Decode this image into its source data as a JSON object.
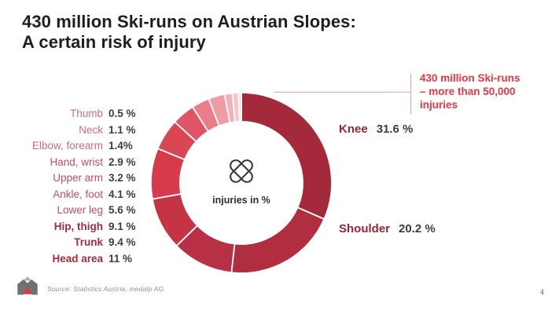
{
  "header": {
    "title": "430 million Ski-runs on Austrian Slopes:\nA certain risk of injury"
  },
  "annotation": {
    "text": "430 million Ski-runs\n– more than 50,000\ninjuries",
    "color": "#EE3440",
    "connector_color": "#F3A2AA"
  },
  "chart_data": {
    "type": "pie",
    "subtype": "donut",
    "title": "430 million Ski-runs on Austrian Slopes: A certain risk of injury",
    "center_label": "injuries in %",
    "center_icon": "crossed-bandaids-icon",
    "unit": "%",
    "start_angle_deg": 0,
    "direction": "clockwise",
    "legend_position": "left (small slices), right callouts (Knee, Shoulder)",
    "segments": [
      {
        "label": "Knee",
        "value": 31.6,
        "display": "31.6 %",
        "color": "#A4293A",
        "label_color": "#9C2433",
        "bold": true
      },
      {
        "label": "Shoulder",
        "value": 20.2,
        "display": "20.2 %",
        "color": "#B02E40",
        "label_color": "#9C2433",
        "bold": true
      },
      {
        "label": "Head area",
        "value": 11,
        "display": "11 %",
        "color": "#B73043",
        "label_color": "#A32B3C",
        "bold": true
      },
      {
        "label": "Trunk",
        "value": 9.4,
        "display": "9.4 %",
        "color": "#C53445",
        "label_color": "#A32B3C",
        "bold": true
      },
      {
        "label": "Hip, thigh",
        "value": 9.1,
        "display": "9.1 %",
        "color": "#D63A4B",
        "label_color": "#A32B3C",
        "bold": true
      },
      {
        "label": "Lower leg",
        "value": 5.6,
        "display": "5.6 %",
        "color": "#D94654",
        "label_color": "#C24F5B",
        "bold": false
      },
      {
        "label": "Ankle, foot",
        "value": 4.1,
        "display": "4.1 %",
        "color": "#E05565",
        "label_color": "#C24F5B",
        "bold": false
      },
      {
        "label": "Upper arm",
        "value": 3.2,
        "display": "3.2 %",
        "color": "#E97D8A",
        "label_color": "#C24F5B",
        "bold": false
      },
      {
        "label": "Hand, wrist",
        "value": 2.9,
        "display": "2.9 %",
        "color": "#F09AA3",
        "label_color": "#C24F5B",
        "bold": false
      },
      {
        "label": "Elbow, forearm",
        "value": 1.4,
        "display": "1.4%",
        "color": "#F3B2BA",
        "label_color": "#C9707A",
        "bold": false
      },
      {
        "label": "Neck",
        "value": 1.1,
        "display": "1.1 %",
        "color": "#F6C3C8",
        "label_color": "#C9707A",
        "bold": false
      },
      {
        "label": "Thumb",
        "value": 0.5,
        "display": "0.5 %",
        "color": "#F9D6DA",
        "label_color": "#C9707A",
        "bold": false
      }
    ]
  },
  "footer": {
    "source": "Source: Statistics Austria, medalp AG",
    "page_number": "4",
    "logo": "medalp-logo"
  }
}
